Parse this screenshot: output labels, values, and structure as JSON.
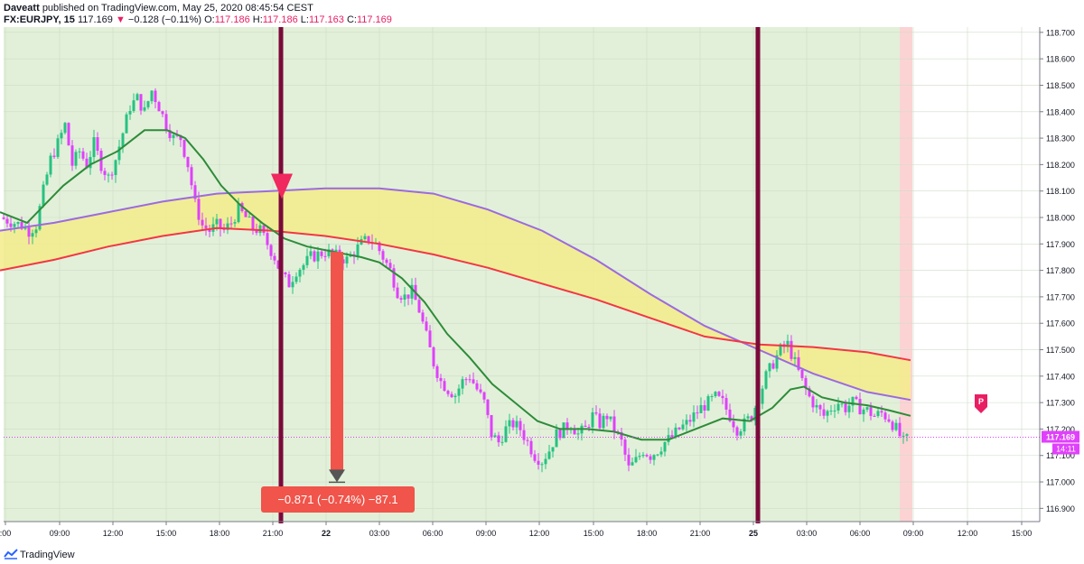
{
  "header": {
    "author": "Daveatt",
    "published_text": "published on TradingView.com, May 25, 2020 08:45:54 CEST",
    "symbol": "FX:EURJPY, 15",
    "last": "117.169",
    "change_arrow": "▼",
    "change": "−0.128 (−0.11%)",
    "o_label": "O:",
    "o_val": "117.186",
    "h_label": "H:",
    "h_val": "117.186",
    "l_label": "L:",
    "l_val": "117.163",
    "c_label": "C:",
    "c_val": "117.169"
  },
  "footer": {
    "brand": "TradingView"
  },
  "colors": {
    "up": "#26c281",
    "down": "#e040fb",
    "bg_green": "#e2f0d9",
    "band_fill": "#f3ec8a",
    "upper_line": "#9c6ade",
    "lower_line": "#f23645",
    "ma_line": "#2e8b3a",
    "session_line": "#7a0a3a",
    "arrow": "#f0544a",
    "last_price": "#e040fb",
    "recent_bg": "#fcd3d3",
    "label_bg": "#f0544a",
    "p_marker": "#e91e63"
  },
  "chart_data": {
    "type": "candlestick",
    "symbol": "FX:EURJPY",
    "interval": "15",
    "ylim": [
      116.85,
      118.72
    ],
    "y_ticks": [
      "118.700",
      "118.600",
      "118.500",
      "118.400",
      "118.300",
      "118.200",
      "118.100",
      "118.000",
      "117.900",
      "117.800",
      "117.700",
      "117.600",
      "117.500",
      "117.400",
      "117.300",
      "117.200",
      "117.100",
      "117.000",
      "116.900"
    ],
    "x_ticks": [
      ":00",
      "09:00",
      "12:00",
      "15:00",
      "18:00",
      "21:00",
      "22",
      "03:00",
      "06:00",
      "09:00",
      "12:00",
      "15:00",
      "18:00",
      "21:00",
      "25",
      "03:00",
      "06:00",
      "09:00",
      "12:00",
      "15:00"
    ],
    "last_price": "117.169",
    "countdown": "14:11",
    "measure_label": "−0.871 (−0.74%) −87.1",
    "signal_marker": "P",
    "close_path": [
      [
        0,
        118.0
      ],
      [
        8,
        117.99
      ],
      [
        16,
        117.98
      ],
      [
        24,
        117.97
      ],
      [
        32,
        117.95
      ],
      [
        40,
        117.97
      ],
      [
        48,
        118.1
      ],
      [
        56,
        118.22
      ],
      [
        64,
        118.28
      ],
      [
        72,
        118.35
      ],
      [
        80,
        118.2
      ],
      [
        88,
        118.25
      ],
      [
        96,
        118.2
      ],
      [
        104,
        118.28
      ],
      [
        112,
        118.2
      ],
      [
        120,
        118.15
      ],
      [
        128,
        118.22
      ],
      [
        136,
        118.32
      ],
      [
        144,
        118.42
      ],
      [
        152,
        118.45
      ],
      [
        160,
        118.4
      ],
      [
        168,
        118.48
      ],
      [
        176,
        118.42
      ],
      [
        184,
        118.35
      ],
      [
        192,
        118.3
      ],
      [
        200,
        118.3
      ],
      [
        208,
        118.2
      ],
      [
        216,
        118.05
      ],
      [
        224,
        117.97
      ],
      [
        232,
        117.95
      ],
      [
        240,
        117.97
      ],
      [
        248,
        117.95
      ],
      [
        256,
        117.98
      ],
      [
        264,
        118.03
      ],
      [
        272,
        118.0
      ],
      [
        280,
        117.96
      ],
      [
        288,
        117.95
      ],
      [
        296,
        117.9
      ],
      [
        304,
        117.85
      ],
      [
        312,
        117.78
      ],
      [
        320,
        117.75
      ],
      [
        328,
        117.8
      ],
      [
        336,
        117.82
      ],
      [
        344,
        117.85
      ],
      [
        352,
        117.86
      ],
      [
        360,
        117.87
      ],
      [
        368,
        117.86
      ],
      [
        376,
        117.85
      ],
      [
        384,
        117.84
      ],
      [
        392,
        117.87
      ],
      [
        400,
        117.9
      ],
      [
        408,
        117.92
      ],
      [
        416,
        117.9
      ],
      [
        424,
        117.85
      ],
      [
        432,
        117.8
      ],
      [
        440,
        117.72
      ],
      [
        448,
        117.7
      ],
      [
        456,
        117.72
      ],
      [
        464,
        117.65
      ],
      [
        472,
        117.55
      ],
      [
        480,
        117.45
      ],
      [
        488,
        117.38
      ],
      [
        496,
        117.35
      ],
      [
        504,
        117.33
      ],
      [
        512,
        117.38
      ],
      [
        520,
        117.4
      ],
      [
        528,
        117.35
      ],
      [
        536,
        117.3
      ],
      [
        544,
        117.18
      ],
      [
        552,
        117.15
      ],
      [
        560,
        117.2
      ],
      [
        568,
        117.22
      ],
      [
        576,
        117.2
      ],
      [
        584,
        117.15
      ],
      [
        592,
        117.1
      ],
      [
        600,
        117.08
      ],
      [
        608,
        117.12
      ],
      [
        616,
        117.18
      ],
      [
        624,
        117.2
      ],
      [
        632,
        117.22
      ],
      [
        640,
        117.18
      ],
      [
        648,
        117.2
      ],
      [
        656,
        117.25
      ],
      [
        664,
        117.22
      ],
      [
        672,
        117.25
      ],
      [
        680,
        117.2
      ],
      [
        688,
        117.15
      ],
      [
        696,
        117.05
      ],
      [
        704,
        117.08
      ],
      [
        712,
        117.12
      ],
      [
        720,
        117.1
      ],
      [
        728,
        117.12
      ],
      [
        736,
        117.15
      ],
      [
        744,
        117.17
      ],
      [
        752,
        117.2
      ],
      [
        760,
        117.22
      ],
      [
        768,
        117.25
      ],
      [
        776,
        117.28
      ],
      [
        784,
        117.3
      ],
      [
        792,
        117.32
      ],
      [
        800,
        117.3
      ],
      [
        808,
        117.25
      ],
      [
        816,
        117.2
      ],
      [
        824,
        117.22
      ],
      [
        832,
        117.25
      ],
      [
        840,
        117.32
      ],
      [
        848,
        117.4
      ],
      [
        856,
        117.45
      ],
      [
        864,
        117.5
      ],
      [
        872,
        117.52
      ],
      [
        880,
        117.45
      ],
      [
        888,
        117.38
      ],
      [
        896,
        117.32
      ],
      [
        904,
        117.28
      ],
      [
        912,
        117.25
      ],
      [
        920,
        117.28
      ],
      [
        928,
        117.3
      ],
      [
        936,
        117.28
      ],
      [
        944,
        117.3
      ],
      [
        952,
        117.28
      ],
      [
        960,
        117.27
      ],
      [
        968,
        117.25
      ],
      [
        976,
        117.26
      ],
      [
        984,
        117.24
      ],
      [
        992,
        117.2
      ],
      [
        1000,
        117.15
      ],
      [
        1008,
        117.169
      ]
    ],
    "moving_average": [
      [
        0,
        118.02
      ],
      [
        30,
        117.98
      ],
      [
        50,
        118.05
      ],
      [
        70,
        118.12
      ],
      [
        100,
        118.2
      ],
      [
        130,
        118.25
      ],
      [
        160,
        118.33
      ],
      [
        185,
        118.33
      ],
      [
        205,
        118.3
      ],
      [
        225,
        118.22
      ],
      [
        245,
        118.12
      ],
      [
        265,
        118.05
      ],
      [
        290,
        117.98
      ],
      [
        315,
        117.92
      ],
      [
        340,
        117.89
      ],
      [
        370,
        117.87
      ],
      [
        400,
        117.85
      ],
      [
        420,
        117.83
      ],
      [
        445,
        117.77
      ],
      [
        470,
        117.68
      ],
      [
        495,
        117.56
      ],
      [
        520,
        117.47
      ],
      [
        545,
        117.37
      ],
      [
        570,
        117.3
      ],
      [
        595,
        117.23
      ],
      [
        620,
        117.2
      ],
      [
        650,
        117.2
      ],
      [
        680,
        117.19
      ],
      [
        710,
        117.16
      ],
      [
        740,
        117.16
      ],
      [
        770,
        117.2
      ],
      [
        800,
        117.24
      ],
      [
        830,
        117.23
      ],
      [
        855,
        117.28
      ],
      [
        875,
        117.35
      ],
      [
        890,
        117.36
      ],
      [
        910,
        117.32
      ],
      [
        935,
        117.3
      ],
      [
        960,
        117.29
      ],
      [
        985,
        117.27
      ],
      [
        1008,
        117.25
      ]
    ],
    "band_upper": [
      [
        0,
        117.95
      ],
      [
        60,
        117.98
      ],
      [
        120,
        118.02
      ],
      [
        180,
        118.06
      ],
      [
        240,
        118.09
      ],
      [
        300,
        118.1
      ],
      [
        360,
        118.11
      ],
      [
        420,
        118.11
      ],
      [
        480,
        118.09
      ],
      [
        540,
        118.03
      ],
      [
        600,
        117.95
      ],
      [
        660,
        117.84
      ],
      [
        720,
        117.71
      ],
      [
        780,
        117.59
      ],
      [
        840,
        117.5
      ],
      [
        900,
        117.41
      ],
      [
        960,
        117.34
      ],
      [
        1008,
        117.31
      ]
    ],
    "band_lower": [
      [
        0,
        117.8
      ],
      [
        60,
        117.84
      ],
      [
        120,
        117.89
      ],
      [
        180,
        117.93
      ],
      [
        240,
        117.96
      ],
      [
        300,
        117.95
      ],
      [
        360,
        117.93
      ],
      [
        420,
        117.9
      ],
      [
        480,
        117.86
      ],
      [
        540,
        117.81
      ],
      [
        600,
        117.75
      ],
      [
        660,
        117.69
      ],
      [
        720,
        117.62
      ],
      [
        780,
        117.55
      ],
      [
        840,
        117.52
      ],
      [
        900,
        117.51
      ],
      [
        960,
        117.49
      ],
      [
        1008,
        117.46
      ]
    ],
    "session_separators": [
      311,
      839
    ],
    "measure": {
      "x": 373,
      "from": 117.87,
      "to": 116.999
    },
    "sell_signal": {
      "x": 312,
      "price": 118.07
    },
    "signal_p": {
      "x": 1086,
      "price": 117.29
    }
  }
}
